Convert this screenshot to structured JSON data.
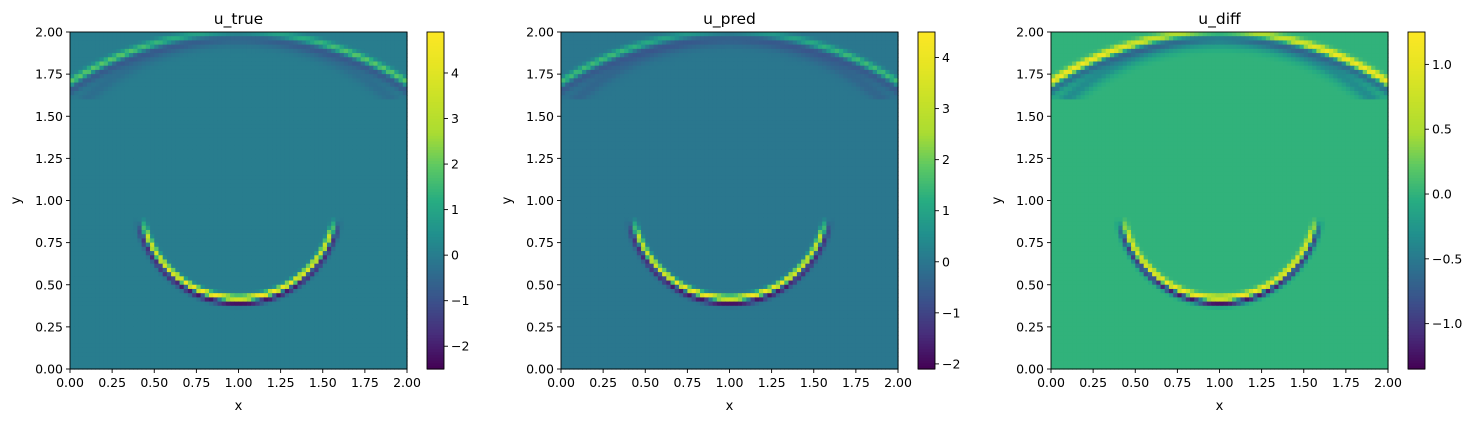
{
  "chart_data": [
    {
      "type": "heatmap",
      "title": "u_true",
      "xlabel": "x",
      "ylabel": "y",
      "xlim": [
        0,
        2
      ],
      "ylim": [
        0,
        2
      ],
      "xticks": [
        "0.00",
        "0.25",
        "0.50",
        "0.75",
        "1.00",
        "1.25",
        "1.50",
        "1.75",
        "2.00"
      ],
      "yticks": [
        "0.00",
        "0.25",
        "0.50",
        "0.75",
        "1.00",
        "1.25",
        "1.50",
        "1.75",
        "2.00"
      ],
      "colormap": "viridis",
      "colorbar": {
        "vmin": -2.5,
        "vmax": 4.9,
        "ticks": [
          -2,
          -1,
          0,
          1,
          2,
          3,
          4
        ],
        "tick_labels": [
          "−2",
          "−1",
          "0",
          "1",
          "2",
          "3",
          "4"
        ]
      },
      "background_value": 0,
      "features": {
        "lower_arc": {
          "center": [
            1.0,
            1.0
          ],
          "radius": 0.58,
          "angle_range_deg": [
            200,
            340
          ],
          "amplitude": 4.8,
          "trough": -2.4
        },
        "upper_arc": {
          "center": [
            1.0,
            0.18
          ],
          "radius": 1.82,
          "amplitude": 2.0,
          "trough": -0.8
        }
      }
    },
    {
      "type": "heatmap",
      "title": "u_pred",
      "xlabel": "x",
      "ylabel": "y",
      "xlim": [
        0,
        2
      ],
      "ylim": [
        0,
        2
      ],
      "xticks": [
        "0.00",
        "0.25",
        "0.50",
        "0.75",
        "1.00",
        "1.25",
        "1.50",
        "1.75",
        "2.00"
      ],
      "yticks": [
        "0.00",
        "0.25",
        "0.50",
        "0.75",
        "1.00",
        "1.25",
        "1.50",
        "1.75",
        "2.00"
      ],
      "colormap": "viridis",
      "colorbar": {
        "vmin": -2.1,
        "vmax": 4.5,
        "ticks": [
          -2,
          -1,
          0,
          1,
          2,
          3,
          4
        ],
        "tick_labels": [
          "−2",
          "−1",
          "0",
          "1",
          "2",
          "3",
          "4"
        ]
      },
      "background_value": 0,
      "features": {
        "lower_arc": {
          "center": [
            1.0,
            1.0
          ],
          "radius": 0.58,
          "angle_range_deg": [
            200,
            340
          ],
          "amplitude": 4.3,
          "trough": -2.0
        },
        "upper_arc": {
          "center": [
            1.0,
            0.18
          ],
          "radius": 1.82,
          "amplitude": 1.6,
          "trough": -0.6
        }
      }
    },
    {
      "type": "heatmap",
      "title": "u_diff",
      "xlabel": "x",
      "ylabel": "y",
      "xlim": [
        0,
        2
      ],
      "ylim": [
        0,
        2
      ],
      "xticks": [
        "0.00",
        "0.25",
        "0.50",
        "0.75",
        "1.00",
        "1.25",
        "1.50",
        "1.75",
        "2.00"
      ],
      "yticks": [
        "0.00",
        "0.25",
        "0.50",
        "0.75",
        "1.00",
        "1.25",
        "1.50",
        "1.75",
        "2.00"
      ],
      "colormap": "viridis",
      "colorbar": {
        "vmin": -1.35,
        "vmax": 1.25,
        "ticks": [
          -1.0,
          -0.5,
          0.0,
          0.5,
          1.0
        ],
        "tick_labels": [
          "−1.0",
          "−0.5",
          "0.0",
          "0.5",
          "1.0"
        ]
      },
      "background_value": 0,
      "features": {
        "lower_arc": {
          "center": [
            1.0,
            1.0
          ],
          "radius": 0.58,
          "angle_range_deg": [
            200,
            340
          ],
          "amplitude": 1.2,
          "trough": -1.3
        },
        "upper_arc": {
          "center": [
            1.0,
            0.18
          ],
          "radius": 1.82,
          "amplitude": 1.2,
          "trough": -0.6
        }
      }
    }
  ],
  "colors": {
    "viridis_low": "#440154",
    "viridis_mid": "#21918c",
    "viridis_high": "#fde725"
  }
}
